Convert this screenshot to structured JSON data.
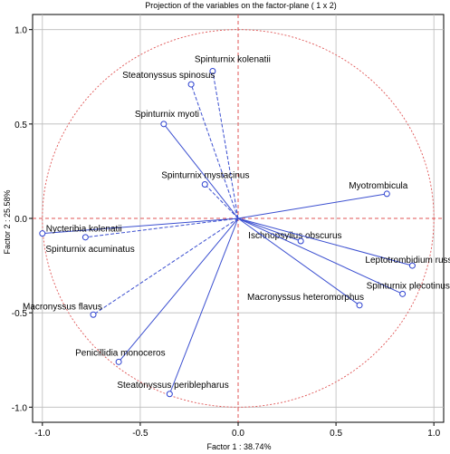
{
  "chart_data": {
    "type": "scatter",
    "title": "Projection of the variables on the factor-plane (  1 x  2)",
    "xlabel": "Factor 1 : 38.74%",
    "ylabel": "Factor 2 : 25.58%",
    "xlim": [
      -1.05,
      1.05
    ],
    "ylim": [
      -1.08,
      1.08
    ],
    "x_ticks": [
      -1.0,
      -0.5,
      0.0,
      0.5,
      1.0
    ],
    "y_ticks": [
      -1.0,
      -0.5,
      0.0,
      0.5,
      1.0
    ],
    "x_tick_labels": [
      "-1.0",
      "-0.5",
      "0.0",
      "0.5",
      "1.0"
    ],
    "y_tick_labels": [
      "-1.0",
      "-0.5",
      "0.0",
      "0.5",
      "1.0"
    ],
    "grid": true,
    "unit_circle": true,
    "colors": {
      "vector": "#3b4fd0",
      "point": "#2a3fcf",
      "circle": "#e05555",
      "zero_lines": "#e05555",
      "grid": "#bbbbbb"
    },
    "points": [
      {
        "label": "Spinturnix kolenatii",
        "x": -0.13,
        "y": 0.78,
        "style": "dashed"
      },
      {
        "label": "Steatonyssus spinosus",
        "x": -0.24,
        "y": 0.71,
        "style": "dashed"
      },
      {
        "label": "Spinturnix myoti",
        "x": -0.38,
        "y": 0.5,
        "style": "solid"
      },
      {
        "label": "Spinturnix mystacinus",
        "x": -0.17,
        "y": 0.18,
        "style": "dashed"
      },
      {
        "label": "Myotrombicula",
        "x": 0.76,
        "y": 0.13,
        "style": "solid"
      },
      {
        "label": "Nycteribia kolenatii",
        "x": -1.0,
        "y": -0.08,
        "style": "solid"
      },
      {
        "label": "Spinturnix acuminatus",
        "x": -0.78,
        "y": -0.1,
        "style": "dashed"
      },
      {
        "label": "Ischnopsyllus obscurus",
        "x": 0.32,
        "y": -0.12,
        "style": "solid"
      },
      {
        "label": "Leptotrombidium russicum",
        "x": 0.89,
        "y": -0.25,
        "style": "solid"
      },
      {
        "label": "Spinturnix plecotinus",
        "x": 0.84,
        "y": -0.4,
        "style": "solid"
      },
      {
        "label": "Macronyssus heteromorphus",
        "x": 0.62,
        "y": -0.46,
        "style": "solid"
      },
      {
        "label": "Macronyssus flavus",
        "x": -0.74,
        "y": -0.51,
        "style": "dashed"
      },
      {
        "label": "Penicillidia monoceros",
        "x": -0.61,
        "y": -0.76,
        "style": "solid"
      },
      {
        "label": "Steatonyssus periblepharus",
        "x": -0.35,
        "y": -0.93,
        "style": "solid"
      }
    ]
  }
}
